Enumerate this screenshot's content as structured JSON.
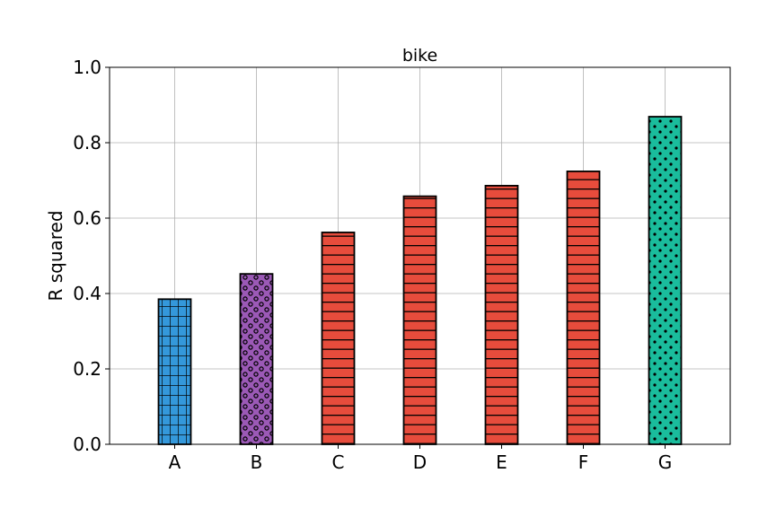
{
  "chart_data": {
    "type": "bar",
    "title": "bike",
    "xlabel": "",
    "ylabel": "R squared",
    "categories": [
      "A",
      "B",
      "C",
      "D",
      "E",
      "F",
      "G"
    ],
    "values": [
      0.385,
      0.452,
      0.562,
      0.658,
      0.686,
      0.724,
      0.869
    ],
    "ylim": [
      0.0,
      1.0
    ],
    "yticks": [
      "0.0",
      "0.2",
      "0.4",
      "0.6",
      "0.8",
      "1.0"
    ],
    "grid": true,
    "bar_colors": [
      "#3498db",
      "#9b59b6",
      "#e74c3c",
      "#e74c3c",
      "#e74c3c",
      "#e74c3c",
      "#1abc9c"
    ],
    "bar_hatches": [
      "grid",
      "rings",
      "horizontal",
      "horizontal",
      "horizontal",
      "horizontal",
      "dots"
    ]
  }
}
